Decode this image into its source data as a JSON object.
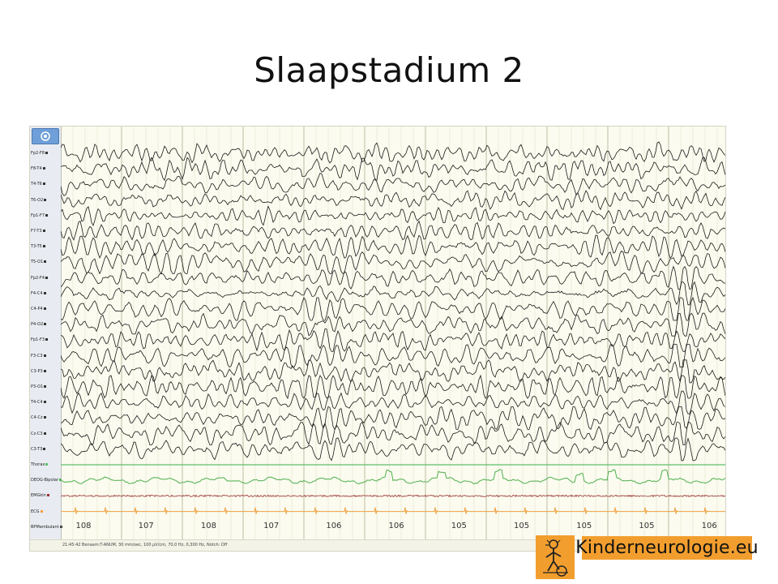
{
  "slide": {
    "title": "Slaapstadium 2"
  },
  "eeg": {
    "channels": [
      "Fp2-F8",
      "F8-T4",
      "T4-T6",
      "T6-O2",
      "Fp1-F7",
      "F7-T3",
      "T3-T5",
      "T5-O1",
      "Fp2-F4",
      "F4-C4",
      "C4-P4",
      "P4-O2",
      "Fp1-F3",
      "F3-C3",
      "C3-P3",
      "P3-O1",
      "T4-C4",
      "C4-Cz",
      "Cz-C3",
      "C3-T3",
      "Thorax",
      "DEOG-Bipolar",
      "EMGkin",
      "ECG",
      "BPMambulant"
    ],
    "heart_rates": [
      "108",
      "107",
      "108",
      "107",
      "106",
      "106",
      "105",
      "105",
      "105",
      "105",
      "106"
    ],
    "footer": "21:45:42  Benaam:T-ANUM,  30 mm/sec,  100 µV/cm,  70,0 Hz,  0,300 Hz,  Notch: Off",
    "colors": {
      "grid_major": "#b4b89a",
      "grid_minor": "#ddddc8",
      "trace": "#1a1a1a",
      "thorax": "#5cbf6a",
      "eog": "#4fb04f",
      "emg": "#9a3030",
      "ecg": "#f0a040"
    }
  },
  "brand": {
    "text": "Kinderneurologie.eu",
    "logo_icon": "child-figure-icon"
  }
}
